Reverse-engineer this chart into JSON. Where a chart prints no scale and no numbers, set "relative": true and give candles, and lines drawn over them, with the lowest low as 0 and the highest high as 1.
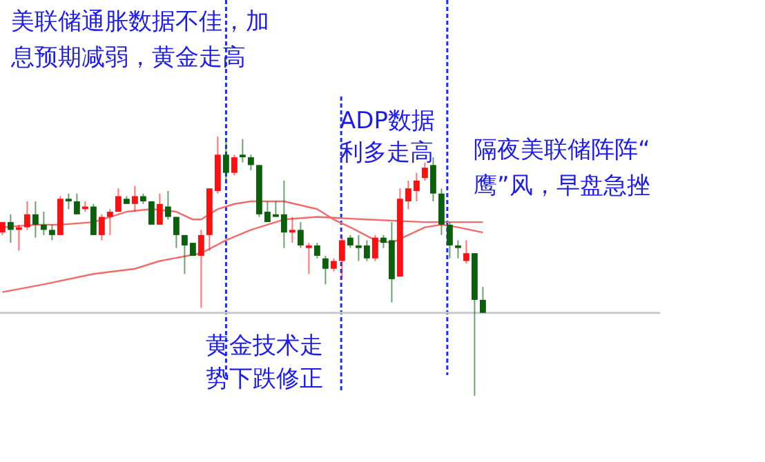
{
  "chart_data": {
    "type": "candlestick",
    "relative": true,
    "categories": [
      null,
      null,
      null,
      null,
      null,
      null,
      null,
      null,
      null,
      null,
      null,
      null,
      null,
      null,
      null,
      null,
      null,
      null,
      null,
      null,
      null,
      null,
      null,
      null,
      null,
      null,
      null,
      null,
      null,
      null,
      null,
      null,
      null,
      null,
      null,
      null,
      null,
      null,
      null,
      null,
      null,
      null,
      null,
      null,
      null,
      null,
      null,
      null,
      null,
      null,
      null,
      null,
      null,
      null,
      null,
      null,
      null,
      null,
      null
    ],
    "ohlc": [
      [
        0.63,
        0.67,
        0.62,
        0.67
      ],
      [
        0.67,
        0.7,
        0.59,
        0.64
      ],
      [
        0.64,
        0.66,
        0.56,
        0.65
      ],
      [
        0.65,
        0.75,
        0.64,
        0.7
      ],
      [
        0.7,
        0.75,
        0.61,
        0.66
      ],
      [
        0.66,
        0.71,
        0.62,
        0.64
      ],
      [
        0.64,
        0.66,
        0.6,
        0.62
      ],
      [
        0.62,
        0.77,
        0.62,
        0.76
      ],
      [
        0.76,
        0.78,
        0.72,
        0.75
      ],
      [
        0.75,
        0.78,
        0.7,
        0.7
      ],
      [
        0.72,
        0.75,
        0.71,
        0.73
      ],
      [
        0.73,
        0.74,
        0.62,
        0.62
      ],
      [
        0.62,
        0.7,
        0.6,
        0.69
      ],
      [
        0.69,
        0.72,
        0.62,
        0.71
      ],
      [
        0.71,
        0.8,
        0.71,
        0.77
      ],
      [
        0.76,
        0.77,
        0.74,
        0.74
      ],
      [
        0.74,
        0.81,
        0.71,
        0.77
      ],
      [
        0.77,
        0.78,
        0.74,
        0.75
      ],
      [
        0.75,
        0.75,
        0.66,
        0.66
      ],
      [
        0.66,
        0.78,
        0.66,
        0.74
      ],
      [
        0.73,
        0.79,
        0.68,
        0.69
      ],
      [
        0.69,
        0.69,
        0.57,
        0.62
      ],
      [
        0.62,
        0.62,
        0.47,
        0.58
      ],
      [
        0.59,
        0.59,
        0.54,
        0.54
      ],
      [
        0.54,
        0.64,
        0.34,
        0.62
      ],
      [
        0.62,
        0.8,
        0.56,
        0.8
      ],
      [
        0.79,
        1.0,
        0.78,
        0.93
      ],
      [
        0.93,
        0.99,
        0.83,
        0.86
      ],
      [
        0.86,
        0.93,
        0.85,
        0.92
      ],
      [
        0.93,
        0.99,
        0.9,
        0.92
      ],
      [
        0.92,
        0.93,
        0.87,
        0.89
      ],
      [
        0.89,
        0.89,
        0.69,
        0.7
      ],
      [
        0.71,
        0.75,
        0.67,
        0.67
      ],
      [
        0.7,
        0.75,
        0.69,
        0.69
      ],
      [
        0.7,
        0.83,
        0.57,
        0.63
      ],
      [
        0.63,
        0.69,
        0.59,
        0.64
      ],
      [
        0.64,
        0.67,
        0.57,
        0.58
      ],
      [
        0.57,
        0.59,
        0.47,
        0.58
      ],
      [
        0.58,
        0.59,
        0.53,
        0.54
      ],
      [
        0.53,
        0.54,
        0.43,
        0.49
      ],
      [
        0.49,
        0.53,
        0.48,
        0.52
      ],
      [
        0.52,
        0.62,
        0.45,
        0.6
      ],
      [
        0.61,
        0.62,
        0.57,
        0.58
      ],
      [
        0.58,
        0.62,
        0.52,
        0.57
      ],
      [
        0.58,
        0.6,
        0.52,
        0.53
      ],
      [
        0.53,
        0.62,
        0.52,
        0.61
      ],
      [
        0.61,
        0.62,
        0.57,
        0.59
      ],
      [
        0.6,
        0.67,
        0.36,
        0.45
      ],
      [
        0.46,
        0.8,
        0.46,
        0.76
      ],
      [
        0.75,
        0.83,
        0.72,
        0.8
      ],
      [
        0.79,
        0.86,
        0.75,
        0.83
      ],
      [
        0.84,
        0.9,
        0.83,
        0.88
      ],
      [
        0.89,
        0.92,
        0.75,
        0.78
      ],
      [
        0.78,
        0.8,
        0.62,
        0.66
      ],
      [
        0.66,
        0.67,
        0.53,
        0.58
      ],
      [
        0.58,
        0.6,
        0.53,
        0.57
      ],
      [
        0.52,
        0.6,
        0.51,
        0.55
      ],
      [
        0.55,
        0.55,
        0.0,
        0.37
      ],
      [
        0.37,
        0.42,
        0.32,
        0.32
      ]
    ],
    "colors": [
      "#ff1010",
      "#0b600b",
      "#ff1010",
      "#ff1010",
      "#0b600b",
      "#0b600b",
      "#0b600b",
      "#ff1010",
      "#0b600b",
      "#0b600b",
      "#ff1010",
      "#0b600b",
      "#ff1010",
      "#ff1010",
      "#ff1010",
      "#0b600b",
      "#ff1010",
      "#0b600b",
      "#0b600b",
      "#ff1010",
      "#0b600b",
      "#0b600b",
      "#0b600b",
      "#0b600b",
      "#ff1010",
      "#ff1010",
      "#ff1010",
      "#0b600b",
      "#ff1010",
      "#0b600b",
      "#0b600b",
      "#0b600b",
      "#0b600b",
      "#0b600b",
      "#0b600b",
      "#ff1010",
      "#0b600b",
      "#ff1010",
      "#0b600b",
      "#0b600b",
      "#ff1010",
      "#ff1010",
      "#0b600b",
      "#0b600b",
      "#0b600b",
      "#ff1010",
      "#0b600b",
      "#0b600b",
      "#ff1010",
      "#ff1010",
      "#ff1010",
      "#ff1010",
      "#0b600b",
      "#0b600b",
      "#0b600b",
      "#0b600b",
      "#ff1010",
      "#0b600b",
      "#0b600b"
    ],
    "series": [
      {
        "type": "line",
        "color": "#f26a6a",
        "values": [
          0.65,
          null,
          null,
          null,
          0.66,
          null,
          null,
          0.66,
          null,
          null,
          null,
          0.67,
          null,
          null,
          null,
          0.71,
          null,
          null,
          0.72,
          null,
          null,
          0.71,
          null,
          0.68,
          0.68,
          null,
          0.72,
          null,
          0.74,
          null,
          0.75,
          null,
          0.75,
          null,
          0.75,
          null,
          null,
          null,
          0.72,
          null,
          0.68,
          null,
          0.65,
          null,
          null,
          0.6,
          null,
          0.59,
          null,
          0.62,
          null,
          0.65,
          null,
          0.66,
          null,
          0.65,
          null,
          null,
          0.63
        ]
      },
      {
        "type": "line",
        "color": "#f26a6a",
        "values": [
          0.4,
          null,
          null,
          null,
          null,
          0.43,
          null,
          null,
          null,
          null,
          null,
          0.47,
          null,
          null,
          null,
          null,
          0.49,
          null,
          null,
          0.52,
          null,
          null,
          null,
          null,
          0.55,
          null,
          null,
          0.6,
          null,
          null,
          0.64,
          null,
          null,
          null,
          0.68,
          null,
          null,
          null,
          0.69,
          null,
          null,
          null,
          null,
          null,
          0.68,
          null,
          null,
          null,
          null,
          null,
          null,
          0.67,
          null,
          null,
          null,
          0.67,
          null,
          null,
          0.67
        ]
      }
    ],
    "ref_lines": [
      {
        "axis": "y",
        "value": 0.32,
        "color": "#c3c9cf"
      }
    ],
    "annotations": [
      "美联储通胀数据不佳，加息预期减弱，黄金走高",
      "黄金技术走势下跌修正",
      "ADP数据利多走高",
      "隔夜美联储阵阵“鹰”风，早盘急挫"
    ]
  }
}
